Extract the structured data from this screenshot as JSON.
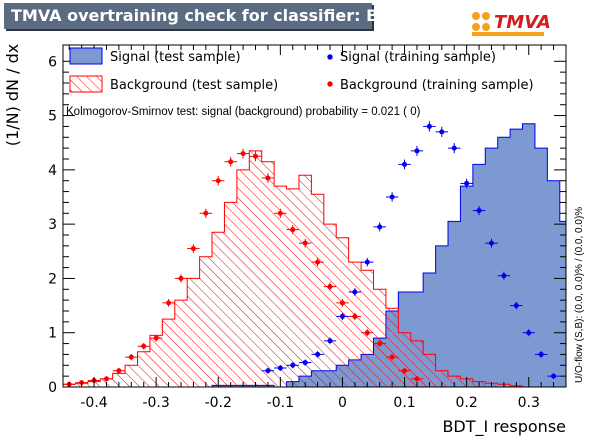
{
  "title": "TMVA overtraining check for classifier: BDT_I",
  "logo_text": "TMVA",
  "chart_data": {
    "type": "histogram",
    "xlabel": "BDT_I response",
    "ylabel": "(1/N) dN / dx",
    "xlim": [
      -0.45,
      0.36
    ],
    "ylim": [
      0,
      6.3
    ],
    "xticks": [
      "-0.4",
      "-0.3",
      "-0.2",
      "-0.1",
      "0",
      "0.1",
      "0.2",
      "0.3"
    ],
    "xtick_values": [
      -0.4,
      -0.3,
      -0.2,
      -0.1,
      0,
      0.1,
      0.2,
      0.3
    ],
    "yticks": [
      "0",
      "1",
      "2",
      "3",
      "4",
      "5",
      "6"
    ],
    "ks_text": "Kolmogorov-Smirnov test: signal (background) probability = 0.021 (    0)",
    "overflow_text": "U/O-flow (S,B): (0.0, 0.0)% / (0.0, 0.0)%",
    "legend": {
      "signal_test": "Signal (test sample)",
      "background_test": "Background (test sample)",
      "signal_train": "Signal (training sample)",
      "background_train": "Background (training sample)"
    },
    "colors": {
      "signal_fill": "#7d99d1",
      "signal_line": "#0000ee",
      "background_line": "#ff0000",
      "signal_marker": "#0000ee",
      "background_marker": "#ff0000"
    },
    "bin_edges_start": -0.45,
    "bin_width": 0.02,
    "series": [
      {
        "name": "Signal (test sample)",
        "style": "filled-histogram",
        "values": [
          0,
          0,
          0,
          0,
          0,
          0,
          0,
          0,
          0,
          0,
          0,
          0,
          0.03,
          0.03,
          0.03,
          0.03,
          0.03,
          0,
          0.1,
          0.2,
          0.3,
          0.3,
          0.4,
          0.5,
          0.6,
          0.9,
          1.4,
          1.75,
          1.75,
          2.1,
          2.6,
          3.05,
          3.7,
          4.1,
          4.4,
          4.6,
          4.75,
          4.85,
          4.4,
          3.8,
          3.05,
          2.3,
          1.7,
          1.2,
          0.6,
          0.25,
          0.1,
          0.05,
          0.02,
          0.01
        ]
      },
      {
        "name": "Background (test sample)",
        "style": "hatched-histogram",
        "values": [
          0.05,
          0.07,
          0.1,
          0.15,
          0.25,
          0.4,
          0.65,
          0.95,
          1.25,
          1.6,
          2,
          2.4,
          2.85,
          3.4,
          4,
          4.35,
          4.15,
          3.7,
          3.65,
          3.9,
          3.55,
          3,
          2.75,
          2.3,
          2.15,
          1.8,
          1.45,
          1,
          0.85,
          0.6,
          0.3,
          0.2,
          0.15,
          0.1,
          0.07,
          0.05,
          0.02,
          0,
          0,
          0,
          0,
          0,
          0,
          0,
          0,
          0,
          0,
          0,
          0,
          0
        ]
      },
      {
        "name": "Signal (training sample)",
        "style": "markers",
        "x": [
          -0.12,
          -0.1,
          -0.08,
          -0.06,
          -0.04,
          -0.02,
          0,
          0.02,
          0.04,
          0.06,
          0.08,
          0.1,
          0.12,
          0.14,
          0.16,
          0.18,
          0.2,
          0.22,
          0.24,
          0.26,
          0.28,
          0.3,
          0.32,
          0.34
        ],
        "values": [
          0.3,
          0.35,
          0.4,
          0.45,
          0.6,
          0.85,
          1.3,
          1.75,
          2.3,
          2.95,
          3.5,
          4.1,
          4.35,
          4.8,
          4.7,
          4.4,
          3.75,
          3.25,
          2.65,
          2.05,
          1.5,
          1,
          0.6,
          0.2
        ]
      },
      {
        "name": "Background (training sample)",
        "style": "markers",
        "x": [
          -0.44,
          -0.42,
          -0.4,
          -0.38,
          -0.36,
          -0.34,
          -0.32,
          -0.3,
          -0.28,
          -0.26,
          -0.24,
          -0.22,
          -0.2,
          -0.18,
          -0.16,
          -0.14,
          -0.12,
          -0.1,
          -0.08,
          -0.06,
          -0.04,
          -0.02,
          0,
          0.02,
          0.04,
          0.06,
          0.08,
          0.1,
          0.12
        ],
        "values": [
          0.05,
          0.08,
          0.12,
          0.15,
          0.3,
          0.55,
          0.75,
          0.9,
          1.55,
          2,
          2.55,
          3.2,
          3.8,
          4.15,
          4.3,
          4.25,
          3.85,
          3.2,
          2.9,
          2.65,
          2.3,
          1.85,
          1.55,
          1.3,
          1,
          0.8,
          0.55,
          0.3,
          0.15
        ]
      }
    ]
  }
}
